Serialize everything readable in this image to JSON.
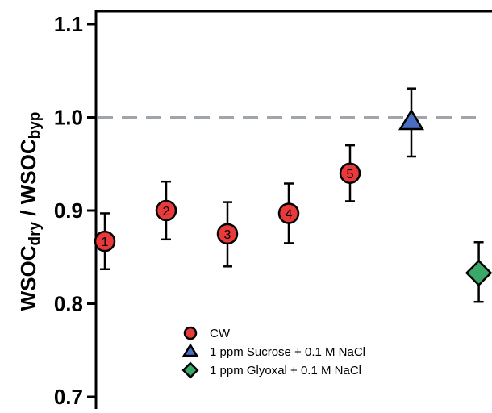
{
  "chart_data": {
    "type": "scatter",
    "ylabel": {
      "main1": "WSOC",
      "sub1": "dry",
      "sep": " / ",
      "main2": "WSOC",
      "sub2": "byp"
    },
    "ylim": [
      0.7,
      1.1
    ],
    "yticks": [
      0.7,
      0.8,
      0.9,
      1.0,
      1.1
    ],
    "ytick_labels": [
      "0.7",
      "0.8",
      "0.9",
      "1.0",
      "1.1"
    ],
    "xlim": [
      0.5,
      8.5
    ],
    "grid": false,
    "reference_line": {
      "y": 1.0,
      "style": "dashed",
      "color": "#a0a4ac"
    },
    "legend_position": "bottom-center",
    "series": [
      {
        "name": "CW",
        "marker": "circle",
        "color": "#e8393b",
        "points": [
          {
            "x": 1,
            "y": 0.867,
            "err_low": 0.837,
            "err_high": 0.897,
            "label": "1"
          },
          {
            "x": 2,
            "y": 0.9,
            "err_low": 0.869,
            "err_high": 0.931,
            "label": "2"
          },
          {
            "x": 3,
            "y": 0.875,
            "err_low": 0.84,
            "err_high": 0.909,
            "label": "3"
          },
          {
            "x": 4,
            "y": 0.897,
            "err_low": 0.865,
            "err_high": 0.929,
            "label": "4"
          },
          {
            "x": 5,
            "y": 0.94,
            "err_low": 0.91,
            "err_high": 0.97,
            "label": "5"
          }
        ]
      },
      {
        "name": "1 ppm Sucrose + 0.1 M NaCl",
        "marker": "triangle",
        "color": "#4a6fc0",
        "points": [
          {
            "x": 6,
            "y": 0.995,
            "err_low": 0.958,
            "err_high": 1.031
          }
        ]
      },
      {
        "name": "1 ppm Glyoxal + 0.1 M NaCl",
        "marker": "diamond",
        "color": "#3aa868",
        "points": [
          {
            "x": 7.1,
            "y": 0.833,
            "err_low": 0.802,
            "err_high": 0.866
          }
        ]
      }
    ]
  }
}
